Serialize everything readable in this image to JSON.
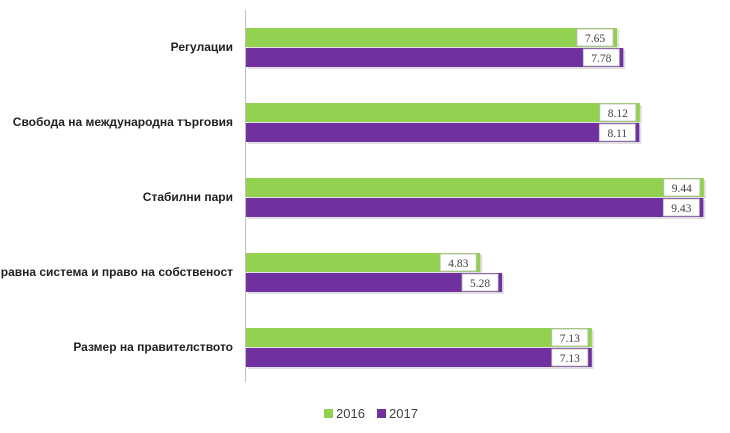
{
  "chart_data": {
    "type": "bar",
    "orientation": "horizontal",
    "categories": [
      "Регулации",
      "Свобода на международна търговия",
      "Стабилни пари",
      "Правна система и право на собственост",
      "Размер на правителството"
    ],
    "series": [
      {
        "name": "2016",
        "color": "#92d050",
        "values": [
          7.65,
          8.12,
          9.44,
          4.83,
          7.13
        ]
      },
      {
        "name": "2017",
        "color": "#7030a0",
        "values": [
          7.78,
          8.11,
          9.43,
          5.28,
          7.13
        ]
      }
    ],
    "data_labels": [
      [
        "7.65",
        "8.12",
        "9.44",
        "4.83",
        "7.13"
      ],
      [
        "7.78",
        "8.11",
        "9.43",
        "5.28",
        "7.13"
      ]
    ],
    "xlim": [
      0,
      10
    ],
    "grid": false,
    "legend_position": "bottom"
  }
}
